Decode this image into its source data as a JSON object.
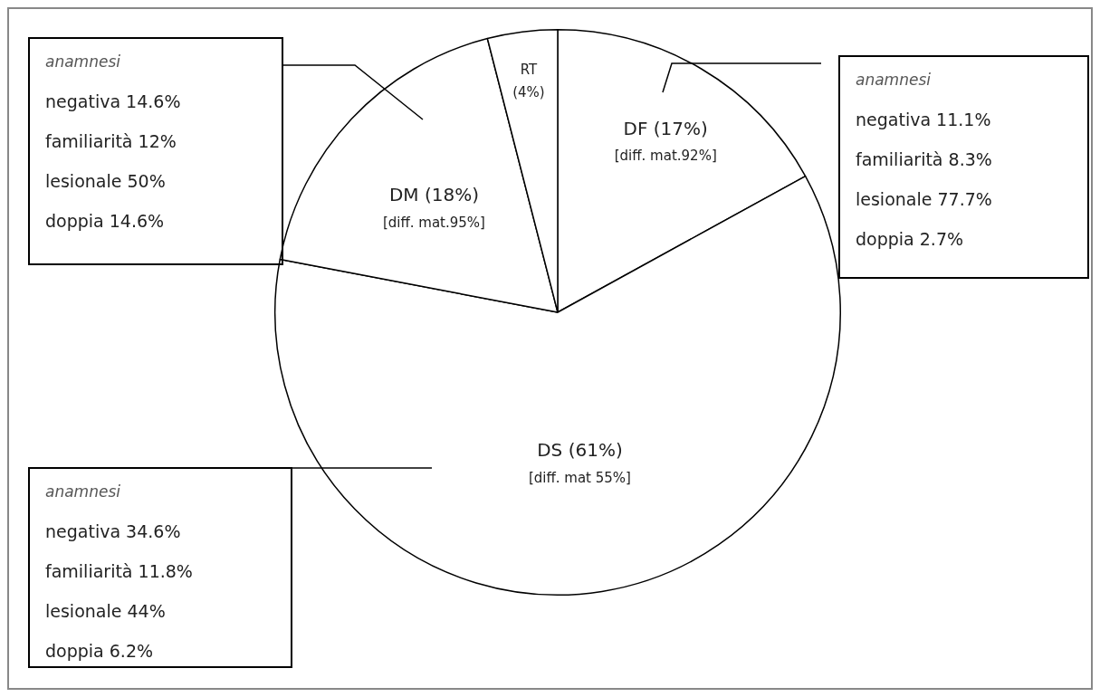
{
  "chart_data": {
    "type": "pie",
    "categories": [
      "DF",
      "DS",
      "DM",
      "RT"
    ],
    "values": [
      17,
      61,
      18,
      4
    ],
    "colors": [
      "#ffffff",
      "#ffffff",
      "#ffffff",
      "#ffffff"
    ],
    "value_labels": [
      "(17%)",
      "(61%)",
      "(18%)",
      "(4%)"
    ],
    "legend": false,
    "annotations": [
      {
        "text": "[diff. mat.92%]",
        "x": "DF"
      },
      {
        "text": "[diff. mat 55%]",
        "x": "DS"
      },
      {
        "text": "[diff. mat.95%]",
        "x": "DM"
      },
      {
        "text": "anamnesi\nnegativa 14.6%\nfamiliarità 12%\nlesionale 50%\ndoppia 14.6%",
        "x": "DM"
      },
      {
        "text": "anamnesi\nnegativa 11.1%\nfamiliarità 8.3%\nlesionale 77.7%\ndoppia 2.7%",
        "x": "DF"
      },
      {
        "text": "anamnesi\nnegativa 34.6%\nfamiliarità 11.8%\nlesionale 44%\ndoppia 6.2%",
        "x": "DS"
      }
    ]
  }
}
